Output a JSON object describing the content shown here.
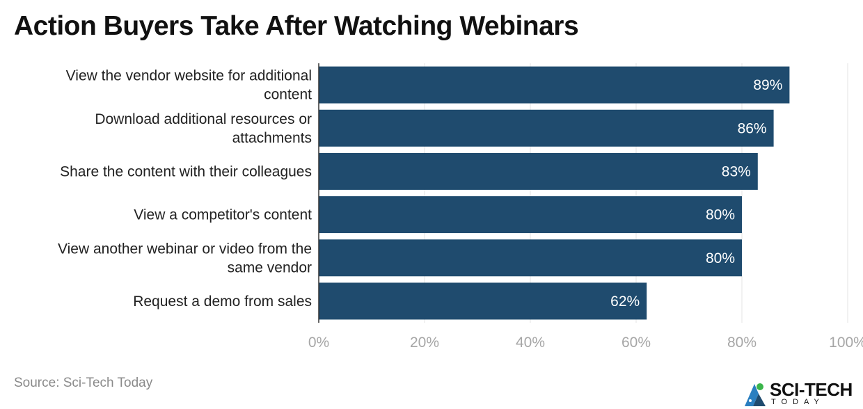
{
  "chart_data": {
    "type": "bar",
    "orientation": "horizontal",
    "title": "Action Buyers Take After Watching Webinars",
    "categories": [
      [
        "View the vendor website for additional",
        "content"
      ],
      [
        "Download additional resources or",
        "attachments"
      ],
      [
        "Share the content with their colleagues"
      ],
      [
        "View a competitor's content"
      ],
      [
        "View another webinar or video from the",
        "same vendor"
      ],
      [
        "Request a demo from sales"
      ]
    ],
    "values": [
      89,
      86,
      83,
      80,
      80,
      62
    ],
    "value_labels": [
      "89%",
      "86%",
      "83%",
      "80%",
      "80%",
      "62%"
    ],
    "xlim": [
      0,
      100
    ],
    "xticks": [
      0,
      20,
      40,
      60,
      80,
      100
    ],
    "xtick_labels": [
      "0%",
      "20%",
      "40%",
      "60%",
      "80%",
      "100%"
    ],
    "grid": true,
    "bar_color": "#1f4b6e",
    "grid_color": "#e3e3e3"
  },
  "footer": {
    "source": "Source: Sci-Tech Today"
  },
  "logo": {
    "text": "SCI-TECH",
    "subtext": "TODAY"
  }
}
